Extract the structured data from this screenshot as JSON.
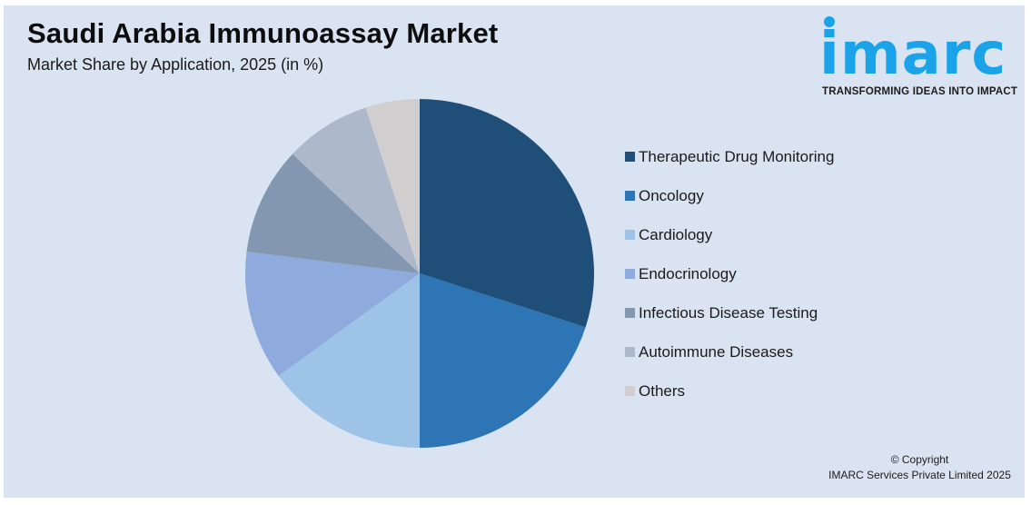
{
  "header": {
    "title": "Saudi Arabia Immunoassay Market",
    "subtitle": "Market Share by Application, 2025 (in %)"
  },
  "logo": {
    "word": "imarc",
    "tagline": "TRANSFORMING IDEAS INTO IMPACT",
    "color": "#1aa3e8"
  },
  "footer": {
    "line1": "© Copyright",
    "line2": "IMARC Services Private Limited 2025"
  },
  "chart_data": {
    "type": "pie",
    "title": "Saudi Arabia Immunoassay Market",
    "subtitle": "Market Share by Application, 2025 (in %)",
    "categories": [
      "Therapeutic Drug Monitoring",
      "Oncology",
      "Cardiology",
      "Endocrinology",
      "Infectious Disease Testing",
      "Autoimmune Diseases",
      "Others"
    ],
    "values": [
      30,
      20,
      15,
      12,
      10,
      8,
      5
    ],
    "colors": [
      "#1f4e79",
      "#2e75b6",
      "#9dc3e6",
      "#8faadc",
      "#8497b0",
      "#adb9ca",
      "#d0cece"
    ],
    "start_angle_deg": 0,
    "direction": "clockwise",
    "legend_position": "right",
    "data_labels": false
  }
}
